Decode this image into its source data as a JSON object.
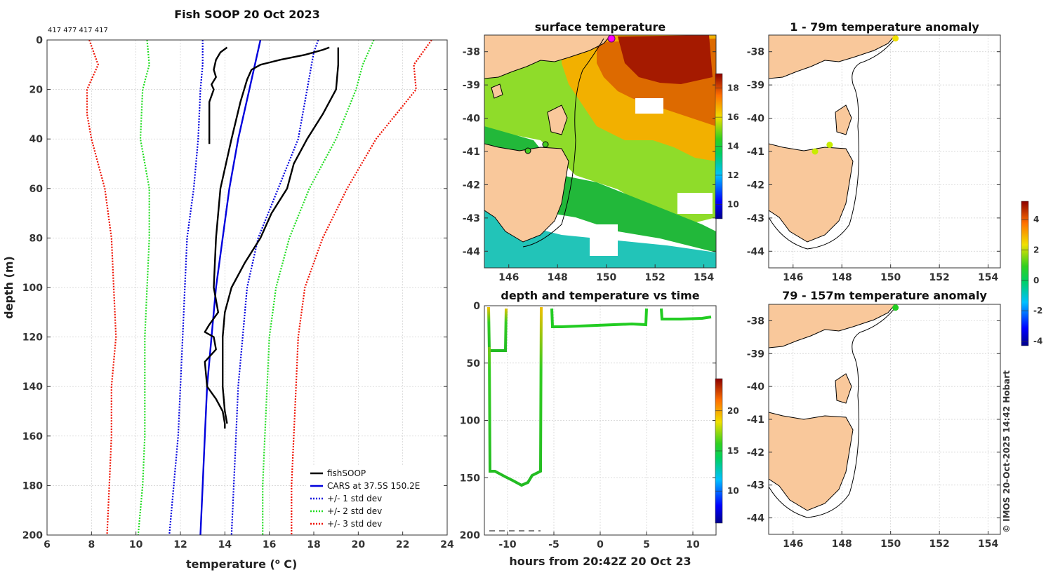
{
  "header": {
    "title": "Fish SOOP 20 Oct 2023",
    "profile_counts": "417 477 417 417",
    "credit": "© IMOS 20-Oct-2025 14:42 Hobart"
  },
  "colors": {
    "fishsoop": "#000000",
    "cars": "#0000dd",
    "std1": "#0000dd",
    "std2": "#22dd22",
    "std3": "#ee1100",
    "land": "#f9c89b"
  },
  "chart_data": [
    {
      "type": "line",
      "id": "profile",
      "title": "Fish SOOP 20 Oct 2023",
      "xlabel": "temperature (",
      "xlabel_sup": "o",
      "xlabel_tail": " C)",
      "ylabel": "depth (m)",
      "xlim": [
        6,
        24
      ],
      "ylim": [
        200,
        0
      ],
      "xticks": [
        "6",
        "8",
        "10",
        "12",
        "14",
        "16",
        "18",
        "20",
        "22",
        "24"
      ],
      "yticks": [
        "0",
        "20",
        "40",
        "60",
        "80",
        "100",
        "120",
        "140",
        "160",
        "180",
        "200"
      ],
      "legend": [
        "fishSOOP",
        "CARS at 37.5S 150.2E",
        "+/- 1 std dev",
        "+/- 2 std dev",
        "+/- 3 std dev"
      ],
      "series": [
        {
          "name": "CARS mean",
          "style": "cars",
          "depth": [
            0,
            20,
            40,
            60,
            80,
            100,
            120,
            140,
            160,
            180,
            200
          ],
          "temp": [
            15.6,
            15.1,
            14.6,
            14.2,
            13.9,
            13.6,
            13.4,
            13.2,
            13.1,
            13.0,
            12.9
          ]
        },
        {
          "name": "+1 std",
          "style": "std1",
          "depth": [
            0,
            5,
            10,
            20,
            40,
            60,
            80,
            100,
            120,
            140,
            160,
            180,
            200
          ],
          "temp": [
            18.2,
            18.0,
            17.9,
            17.7,
            17.3,
            16.4,
            15.5,
            15.0,
            14.8,
            14.6,
            14.5,
            14.4,
            14.3
          ]
        },
        {
          "name": "-1 std",
          "style": "std1",
          "depth": [
            0,
            10,
            20,
            40,
            60,
            80,
            100,
            120,
            140,
            160,
            180,
            200
          ],
          "temp": [
            13.0,
            13.0,
            12.9,
            12.8,
            12.6,
            12.3,
            12.2,
            12.1,
            12.0,
            11.9,
            11.7,
            11.5
          ]
        },
        {
          "name": "+2 std",
          "style": "std2",
          "depth": [
            0,
            10,
            20,
            40,
            60,
            80,
            100,
            120,
            140,
            160,
            180,
            200
          ],
          "temp": [
            20.7,
            20.2,
            19.9,
            19.0,
            17.8,
            16.9,
            16.3,
            16.0,
            15.9,
            15.8,
            15.7,
            15.7
          ]
        },
        {
          "name": "-2 std",
          "style": "std2",
          "depth": [
            0,
            10,
            20,
            40,
            60,
            80,
            100,
            120,
            140,
            160,
            180,
            200
          ],
          "temp": [
            10.5,
            10.6,
            10.3,
            10.2,
            10.6,
            10.6,
            10.5,
            10.4,
            10.4,
            10.4,
            10.3,
            10.1
          ]
        },
        {
          "name": "+3 std",
          "style": "std3",
          "depth": [
            0,
            10,
            20,
            30,
            40,
            60,
            80,
            100,
            120,
            140,
            160,
            180,
            200
          ],
          "temp": [
            23.3,
            22.5,
            22.6,
            21.7,
            20.8,
            19.5,
            18.4,
            17.6,
            17.3,
            17.2,
            17.1,
            17.0,
            17.0
          ]
        },
        {
          "name": "-3 std",
          "style": "std3",
          "depth": [
            0,
            10,
            20,
            30,
            40,
            60,
            80,
            100,
            120,
            140,
            160,
            180,
            200
          ],
          "temp": [
            7.9,
            8.3,
            7.8,
            7.8,
            8.0,
            8.6,
            8.9,
            9.0,
            9.1,
            8.9,
            8.9,
            8.8,
            8.7
          ]
        },
        {
          "name": "fishSOOP cast 1",
          "style": "fishsoop",
          "depth": [
            3,
            5,
            8,
            12,
            15,
            18,
            20,
            25,
            30,
            35,
            40,
            42
          ],
          "temp": [
            14.1,
            13.8,
            13.6,
            13.5,
            13.6,
            13.4,
            13.5,
            13.3,
            13.3,
            13.3,
            13.3,
            13.3
          ]
        },
        {
          "name": "fishSOOP cast 2",
          "style": "fishsoop",
          "depth": [
            3,
            4,
            6,
            8,
            10,
            12,
            16,
            25,
            40,
            60,
            80,
            100,
            110,
            115,
            118,
            120,
            125,
            128,
            130,
            140,
            145,
            150,
            155,
            157
          ],
          "temp": [
            18.7,
            18.4,
            17.6,
            16.5,
            15.6,
            15.2,
            15.0,
            14.7,
            14.3,
            13.8,
            13.6,
            13.5,
            13.7,
            13.3,
            13.1,
            13.5,
            13.6,
            13.3,
            13.1,
            13.2,
            13.6,
            13.9,
            14.0,
            14.0
          ]
        },
        {
          "name": "fishSOOP cast 3",
          "style": "fishsoop",
          "depth": [
            3,
            10,
            20,
            30,
            40,
            50,
            60,
            70,
            80,
            90,
            100,
            110,
            120,
            130,
            140,
            150,
            155
          ],
          "temp": [
            19.1,
            19.1,
            19.0,
            18.4,
            17.7,
            17.1,
            16.8,
            16.1,
            15.6,
            14.9,
            14.3,
            14.0,
            13.9,
            13.9,
            13.9,
            14.0,
            14.1
          ]
        }
      ]
    },
    {
      "type": "heatmap",
      "id": "sst_map",
      "title": "surface temperature",
      "xlim": [
        145,
        154.5
      ],
      "ylim": [
        -44.5,
        -37.5
      ],
      "xticks": [
        "146",
        "148",
        "150",
        "152",
        "154"
      ],
      "yticks": [
        "-38",
        "-39",
        "-40",
        "-41",
        "-42",
        "-43",
        "-44"
      ],
      "colorbar": {
        "range": [
          9,
          19
        ],
        "ticks": [
          "10",
          "12",
          "14",
          "16",
          "18"
        ]
      }
    },
    {
      "type": "scatter",
      "id": "depth_time",
      "title": "depth and temperature vs time",
      "xlabel": "hours from 20:42Z 20 Oct 23",
      "xlim": [
        -12.5,
        12.5
      ],
      "ylim": [
        200,
        0
      ],
      "xticks": [
        "-10",
        "-5",
        "0",
        "5",
        "10"
      ],
      "yticks": [
        "0",
        "50",
        "100",
        "150",
        "200"
      ],
      "colorbar": {
        "range": [
          6,
          24
        ],
        "ticks": [
          "10",
          "15",
          "20"
        ]
      }
    },
    {
      "type": "scatter",
      "id": "anom_upper",
      "title": "1 - 79m temperature anomaly",
      "xlim": [
        145,
        154.5
      ],
      "ylim": [
        -44.5,
        -37.5
      ],
      "xticks": [
        "146",
        "148",
        "150",
        "152",
        "154"
      ],
      "yticks": [
        "-38",
        "-39",
        "-40",
        "-41",
        "-42",
        "-43",
        "-44"
      ],
      "points": [
        {
          "lon": 150.2,
          "lat": -37.6,
          "anom": 2.5
        },
        {
          "lon": 147.5,
          "lat": -40.8,
          "anom": 1.2
        },
        {
          "lon": 146.9,
          "lat": -41.0,
          "anom": 1.8
        }
      ]
    },
    {
      "type": "scatter",
      "id": "anom_lower",
      "title": "79 - 157m temperature anomaly",
      "xlim": [
        145,
        154.5
      ],
      "ylim": [
        -44.5,
        -37.5
      ],
      "xticks": [
        "146",
        "148",
        "150",
        "152",
        "154"
      ],
      "yticks": [
        "-38",
        "-39",
        "-40",
        "-41",
        "-42",
        "-43",
        "-44"
      ],
      "points": [
        {
          "lon": 150.2,
          "lat": -37.6,
          "anom": 0.2
        }
      ]
    },
    {
      "type": "heatmap",
      "id": "anom_colorbar",
      "colorbar": {
        "range": [
          -4.3,
          5.2
        ],
        "ticks": [
          "4",
          "2",
          "0",
          "-2",
          "-4"
        ]
      }
    }
  ]
}
